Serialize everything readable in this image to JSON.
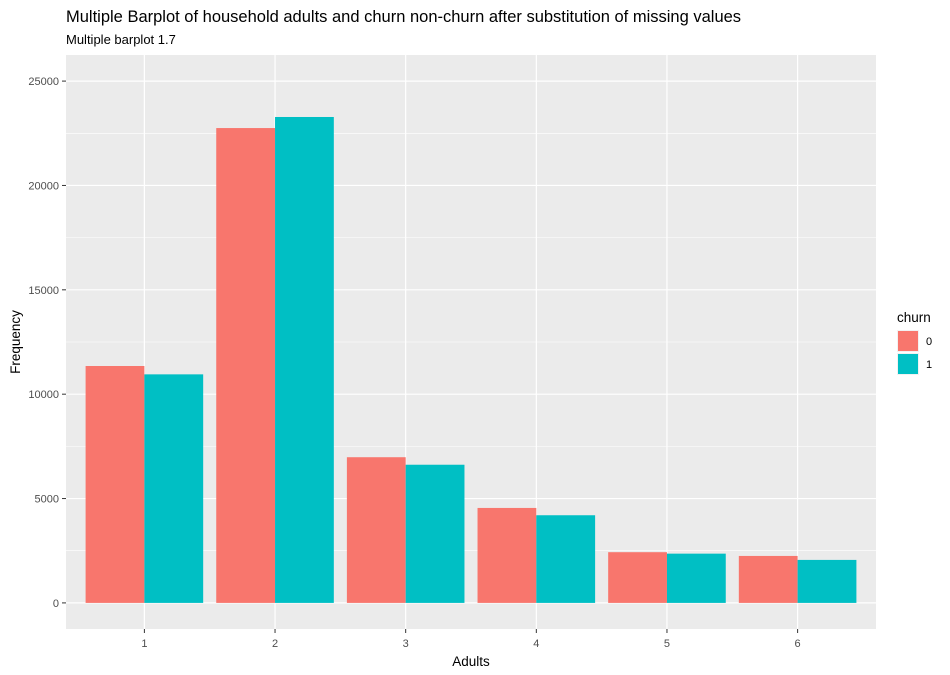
{
  "chart_data": {
    "type": "bar",
    "title": "Multiple Barplot of household adults and churn non-churn after substitution of missing values",
    "subtitle": "Multiple barplot 1.7",
    "xlabel": "Adults",
    "ylabel": "Frequency",
    "categories": [
      "1",
      "2",
      "3",
      "4",
      "5",
      "6"
    ],
    "series": [
      {
        "name": "0",
        "color": "#F8766D",
        "values": [
          11350,
          22750,
          6980,
          4550,
          2430,
          2250
        ]
      },
      {
        "name": "1",
        "color": "#00BFC4",
        "values": [
          10950,
          23280,
          6620,
          4200,
          2360,
          2060
        ]
      }
    ],
    "ylim": [
      -1250,
      26250
    ],
    "yticks": [
      0,
      5000,
      10000,
      15000,
      20000,
      25000
    ],
    "yticklabels": [
      "0",
      "5000",
      "10000",
      "15000",
      "20000",
      "25000"
    ],
    "grid": true,
    "legend": {
      "title": "churn",
      "placement": "right"
    },
    "panel_background": "#EBEBEB",
    "gridline_color": "#FFFFFF"
  }
}
